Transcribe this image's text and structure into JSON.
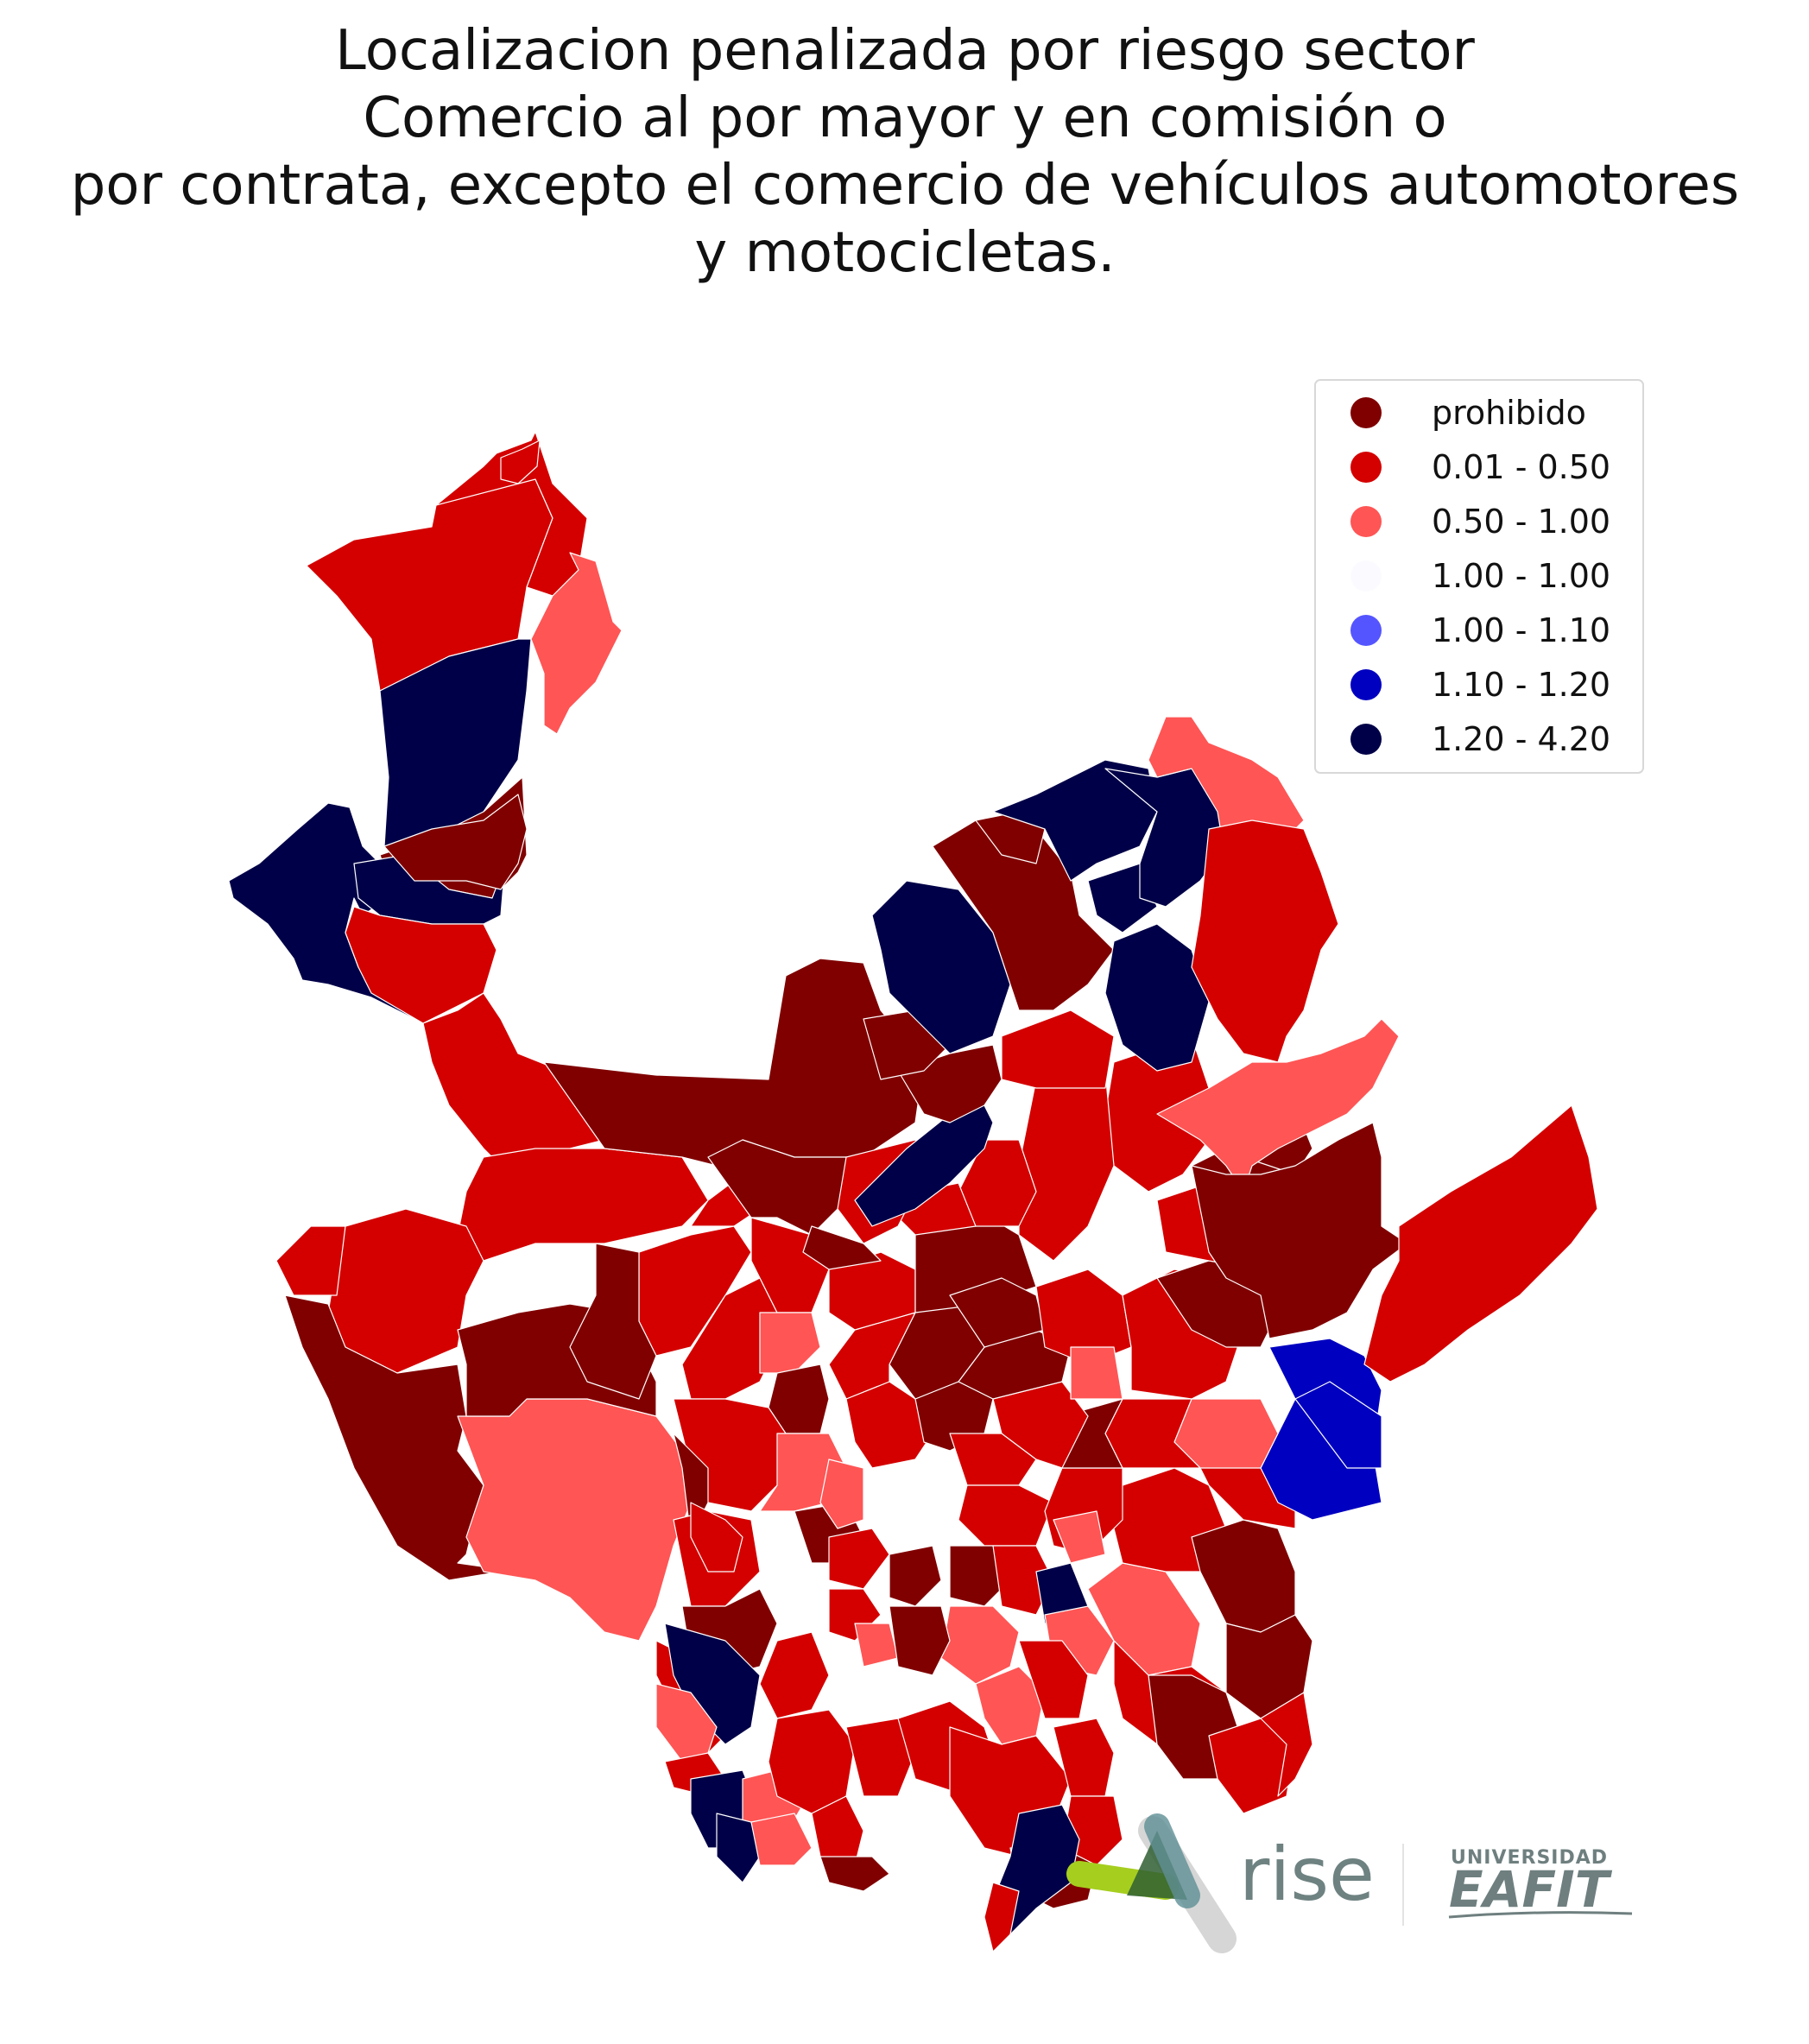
{
  "title": {
    "lines": [
      "Localizacion penalizada por riesgo sector",
      "Comercio al por mayor y en comisión o",
      "por contrata, excepto el comercio de vehículos automotores",
      "y motocicletas."
    ]
  },
  "legend": {
    "items": [
      {
        "label": "prohibido",
        "color": "#800000"
      },
      {
        "label": "0.01 - 0.50",
        "color": "#d40000"
      },
      {
        "label": "0.50 - 1.00",
        "color": "#ff5555"
      },
      {
        "label": "1.00 - 1.00",
        "color": "#fbfbff"
      },
      {
        "label": "1.00 - 1.10",
        "color": "#5555ff"
      },
      {
        "label": "1.10 - 1.20",
        "color": "#0000c0"
      },
      {
        "label": "1.20 - 4.20",
        "color": "#000048"
      }
    ]
  },
  "logos": {
    "rise": "rise",
    "eafit_top": "UNIVERSIDAD",
    "eafit_main": "EAFIT"
  },
  "map": {
    "region_colors": {
      "prohibido": "#800000",
      "low": "#d40000",
      "mid": "#ff5555",
      "high": "#000048",
      "blue": "#0000c0"
    }
  }
}
